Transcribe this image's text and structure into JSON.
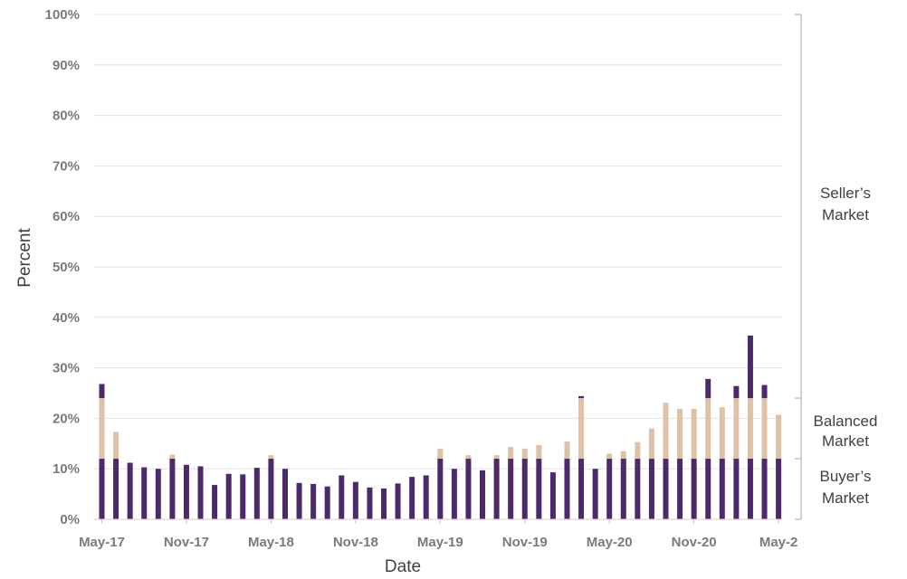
{
  "chart_data": {
    "type": "bar",
    "stacked": true,
    "title": "",
    "xlabel": "Date",
    "ylabel": "Percent",
    "ylim": [
      0,
      100
    ],
    "grid": true,
    "y_ticks": [
      "0%",
      "10%",
      "20%",
      "30%",
      "40%",
      "50%",
      "60%",
      "70%",
      "80%",
      "90%",
      "100%"
    ],
    "x_tick_labels": [
      {
        "index": 0,
        "label": "May-17"
      },
      {
        "index": 6,
        "label": "Nov-17"
      },
      {
        "index": 12,
        "label": "May-18"
      },
      {
        "index": 18,
        "label": "Nov-18"
      },
      {
        "index": 24,
        "label": "May-19"
      },
      {
        "index": 30,
        "label": "Nov-19"
      },
      {
        "index": 36,
        "label": "May-20"
      },
      {
        "index": 42,
        "label": "Nov-20"
      },
      {
        "index": 48,
        "label": "May-2"
      }
    ],
    "categories": [
      "May-17",
      "Jun-17",
      "Jul-17",
      "Aug-17",
      "Sep-17",
      "Oct-17",
      "Nov-17",
      "Dec-17",
      "Jan-18",
      "Feb-18",
      "Mar-18",
      "Apr-18",
      "May-18",
      "Jun-18",
      "Jul-18",
      "Aug-18",
      "Sep-18",
      "Oct-18",
      "Nov-18",
      "Dec-18",
      "Jan-19",
      "Feb-19",
      "Mar-19",
      "Apr-19",
      "May-19",
      "Jun-19",
      "Jul-19",
      "Aug-19",
      "Sep-19",
      "Oct-19",
      "Nov-19",
      "Dec-19",
      "Jan-20",
      "Feb-20",
      "Mar-20",
      "Apr-20",
      "May-20",
      "Jun-20",
      "Jul-20",
      "Aug-20",
      "Sep-20",
      "Oct-20",
      "Nov-20",
      "Dec-20",
      "Jan-21",
      "Feb-21",
      "Mar-21",
      "Apr-21",
      "May-21"
    ],
    "totals": [
      26.8,
      17.3,
      11.2,
      10.3,
      10.0,
      12.8,
      10.8,
      10.5,
      6.8,
      9.0,
      8.9,
      10.2,
      12.7,
      10.0,
      7.2,
      7.0,
      6.5,
      8.7,
      7.4,
      6.3,
      6.1,
      7.1,
      8.4,
      8.7,
      14.0,
      10.0,
      12.7,
      9.7,
      12.7,
      14.3,
      14.0,
      14.7,
      9.3,
      15.4,
      24.4,
      10.0,
      13.0,
      13.5,
      15.3,
      18.0,
      23.1,
      21.9,
      21.9,
      27.8,
      22.2,
      26.4,
      36.4,
      26.6,
      20.7
    ],
    "series": [
      {
        "band": [
          0,
          12
        ],
        "color": "#4b2a6b"
      },
      {
        "band": [
          12,
          24
        ],
        "color": "#ddc2a8"
      },
      {
        "band": [
          24,
          100
        ],
        "color": "#4b2a6b"
      }
    ],
    "bands": [
      {
        "label_lines": [
          "Buyer’s",
          "Market"
        ],
        "from": 0,
        "to": 12
      },
      {
        "label_lines": [
          "Balanced",
          "Market"
        ],
        "from": 12,
        "to": 24
      },
      {
        "label_lines": [
          "Seller’s",
          "Market"
        ],
        "from": 24,
        "to": 100
      }
    ]
  }
}
